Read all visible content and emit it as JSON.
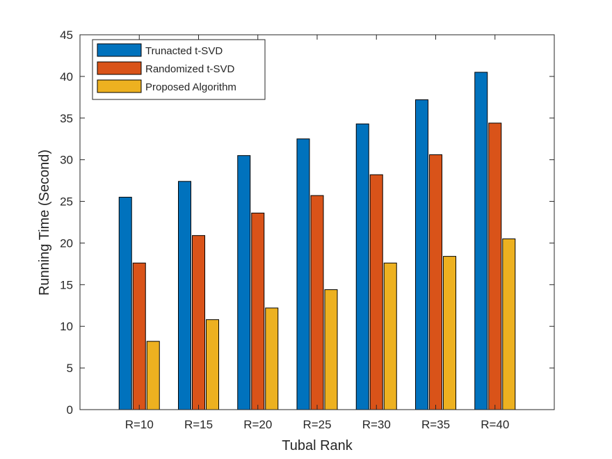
{
  "chart_data": {
    "type": "bar",
    "title": "",
    "xlabel": "Tubal Rank",
    "ylabel": "Running Time (Second)",
    "ylim": [
      0,
      45
    ],
    "yticks": [
      "0",
      "5",
      "10",
      "15",
      "20",
      "25",
      "30",
      "35",
      "40",
      "45"
    ],
    "categories": [
      "R=10",
      "R=15",
      "R=20",
      "R=25",
      "R=30",
      "R=35",
      "R=40"
    ],
    "series": [
      {
        "name": "Trunacted t-SVD",
        "color": "#0072BD",
        "values": [
          25.5,
          27.4,
          30.5,
          32.5,
          34.3,
          37.2,
          40.5
        ]
      },
      {
        "name": "Randomized t-SVD",
        "color": "#D95319",
        "values": [
          17.6,
          20.9,
          23.6,
          25.7,
          28.2,
          30.6,
          34.4
        ]
      },
      {
        "name": "Proposed Algorithm",
        "color": "#EDB120",
        "values": [
          8.2,
          10.8,
          12.2,
          14.4,
          17.6,
          18.4,
          20.5
        ]
      }
    ],
    "legend_position": "top-left",
    "grid": false
  }
}
